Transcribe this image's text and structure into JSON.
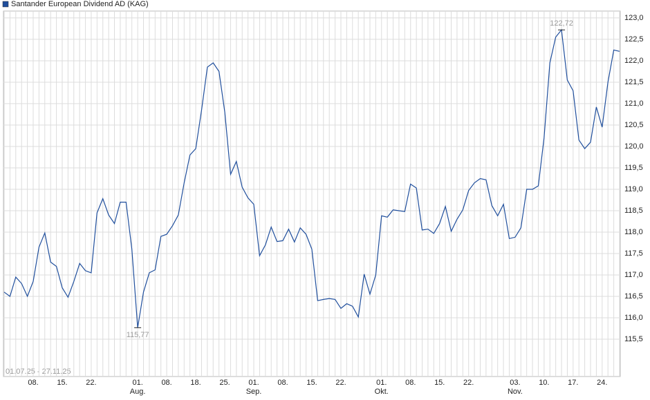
{
  "chart_data": {
    "type": "line",
    "series": [
      {
        "name": "Santander European Dividend AD (KAG)",
        "color": "#1f4e9c",
        "values": [
          116.6,
          116.5,
          116.95,
          116.8,
          116.5,
          116.85,
          117.65,
          117.98,
          117.3,
          117.2,
          116.7,
          116.48,
          116.85,
          117.27,
          117.1,
          117.05,
          118.45,
          118.78,
          118.4,
          118.2,
          118.7,
          118.7,
          117.6,
          115.77,
          116.6,
          117.05,
          117.12,
          117.9,
          117.95,
          118.15,
          118.4,
          119.15,
          119.8,
          119.95,
          120.85,
          121.85,
          121.95,
          121.75,
          120.8,
          119.35,
          119.65,
          119.05,
          118.8,
          118.65,
          117.45,
          117.7,
          118.12,
          117.78,
          117.8,
          118.07,
          117.77,
          118.1,
          117.95,
          117.6,
          116.4,
          116.43,
          116.45,
          116.43,
          116.22,
          116.33,
          116.27,
          116.02,
          117.02,
          116.55,
          117.0,
          118.38,
          118.35,
          118.52,
          118.5,
          118.48,
          119.12,
          119.03,
          118.05,
          118.07,
          117.97,
          118.2,
          118.6,
          118.02,
          118.3,
          118.52,
          118.97,
          119.15,
          119.25,
          119.22,
          118.62,
          118.38,
          118.65,
          117.85,
          117.88,
          118.1,
          119.0,
          119.0,
          119.08,
          120.2,
          121.95,
          122.55,
          122.72,
          121.55,
          121.3,
          120.15,
          119.95,
          120.1,
          120.92,
          120.45,
          121.5,
          122.25,
          122.22
        ]
      }
    ],
    "categories": [
      null,
      null,
      null,
      null,
      null,
      "08.",
      null,
      null,
      null,
      null,
      "15.",
      null,
      null,
      null,
      null,
      "22.",
      null,
      null,
      null,
      null,
      null,
      null,
      null,
      "01.",
      null,
      null,
      null,
      null,
      "08.",
      null,
      null,
      null,
      null,
      "18.",
      null,
      null,
      null,
      null,
      "25.",
      null,
      null,
      null,
      null,
      "01.",
      null,
      null,
      null,
      null,
      "08.",
      null,
      null,
      null,
      null,
      "15.",
      null,
      null,
      null,
      null,
      "22.",
      null,
      null,
      null,
      null,
      null,
      null,
      "01.",
      null,
      null,
      null,
      null,
      "08.",
      null,
      null,
      null,
      null,
      "15.",
      null,
      null,
      null,
      null,
      "22.",
      null,
      null,
      null,
      null,
      null,
      null,
      null,
      "03.",
      null,
      null,
      null,
      null,
      "10.",
      null,
      null,
      null,
      null,
      "17.",
      null,
      null,
      null,
      null,
      "24.",
      null,
      null,
      null
    ],
    "month_labels": [
      null,
      null,
      null,
      null,
      null,
      null,
      null,
      null,
      null,
      null,
      null,
      null,
      null,
      null,
      null,
      null,
      null,
      null,
      null,
      null,
      null,
      null,
      null,
      "Aug.",
      null,
      null,
      null,
      null,
      null,
      null,
      null,
      null,
      null,
      null,
      null,
      null,
      null,
      null,
      null,
      null,
      null,
      null,
      null,
      "Sep.",
      null,
      null,
      null,
      null,
      null,
      null,
      null,
      null,
      null,
      null,
      null,
      null,
      null,
      null,
      null,
      null,
      null,
      null,
      null,
      null,
      null,
      "Okt.",
      null,
      null,
      null,
      null,
      null,
      null,
      null,
      null,
      null,
      null,
      null,
      null,
      null,
      null,
      null,
      null,
      null,
      null,
      null,
      null,
      null,
      null,
      "Nov.",
      null,
      null,
      null,
      null,
      null,
      null,
      null,
      null,
      null,
      null,
      null,
      null,
      null,
      null,
      null,
      null,
      null,
      null
    ],
    "ylim": [
      114.63,
      123.16
    ],
    "yticks": [
      {
        "value": 115.5,
        "label": "115,5"
      },
      {
        "value": 116.0,
        "label": "116,0"
      },
      {
        "value": 116.5,
        "label": "116,5"
      },
      {
        "value": 117.0,
        "label": "117,0"
      },
      {
        "value": 117.5,
        "label": "117,5"
      },
      {
        "value": 118.0,
        "label": "118,0"
      },
      {
        "value": 118.5,
        "label": "118,5"
      },
      {
        "value": 119.0,
        "label": "119,0"
      },
      {
        "value": 119.5,
        "label": "119,5"
      },
      {
        "value": 120.0,
        "label": "120,0"
      },
      {
        "value": 120.5,
        "label": "120,5"
      },
      {
        "value": 121.0,
        "label": "121,0"
      },
      {
        "value": 121.5,
        "label": "121,5"
      },
      {
        "value": 122.0,
        "label": "122,0"
      },
      {
        "value": 122.5,
        "label": "122,5"
      },
      {
        "value": 123.0,
        "label": "123,0"
      }
    ],
    "grid": true,
    "annotations": [
      {
        "label": "122,72",
        "value": 122.72,
        "position": "above"
      },
      {
        "label": "115,77",
        "value": 115.77,
        "position": "below"
      }
    ],
    "date_range": "01.07.25 - 27.11.25"
  }
}
